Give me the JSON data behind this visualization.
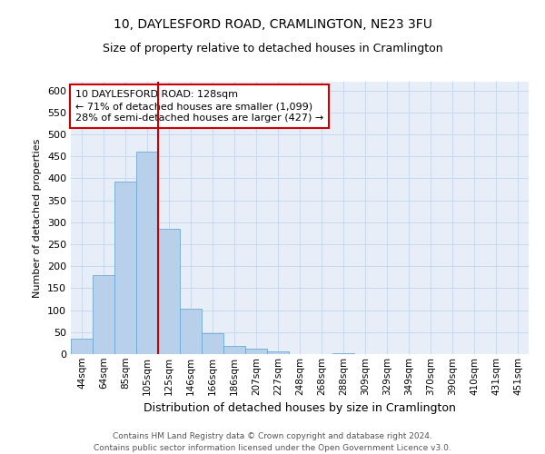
{
  "title1": "10, DAYLESFORD ROAD, CRAMLINGTON, NE23 3FU",
  "title2": "Size of property relative to detached houses in Cramlington",
  "xlabel": "Distribution of detached houses by size in Cramlington",
  "ylabel": "Number of detached properties",
  "footnote": "Contains HM Land Registry data © Crown copyright and database right 2024.\nContains public sector information licensed under the Open Government Licence v3.0.",
  "bin_labels": [
    "44sqm",
    "64sqm",
    "85sqm",
    "105sqm",
    "125sqm",
    "146sqm",
    "166sqm",
    "186sqm",
    "207sqm",
    "227sqm",
    "248sqm",
    "268sqm",
    "288sqm",
    "309sqm",
    "329sqm",
    "349sqm",
    "370sqm",
    "390sqm",
    "410sqm",
    "431sqm",
    "451sqm"
  ],
  "bar_values": [
    35,
    180,
    393,
    460,
    285,
    103,
    47,
    18,
    13,
    7,
    1,
    0,
    2,
    0,
    0,
    0,
    0,
    1,
    0,
    0,
    1
  ],
  "bar_color": "#b8d0ea",
  "bar_edge_color": "#6aaad4",
  "vline_color": "#cc0000",
  "annotation_text": "10 DAYLESFORD ROAD: 128sqm\n← 71% of detached houses are smaller (1,099)\n28% of semi-detached houses are larger (427) →",
  "annotation_box_color": "#ffffff",
  "annotation_box_edge": "#cc0000",
  "grid_color": "#c8d8ee",
  "background_color": "#e8eef8",
  "ylim": [
    0,
    620
  ],
  "yticks": [
    0,
    50,
    100,
    150,
    200,
    250,
    300,
    350,
    400,
    450,
    500,
    550,
    600
  ],
  "title1_fontsize": 10,
  "title2_fontsize": 9,
  "xlabel_fontsize": 9,
  "ylabel_fontsize": 8,
  "tick_fontsize": 8,
  "footnote_fontsize": 6.5
}
